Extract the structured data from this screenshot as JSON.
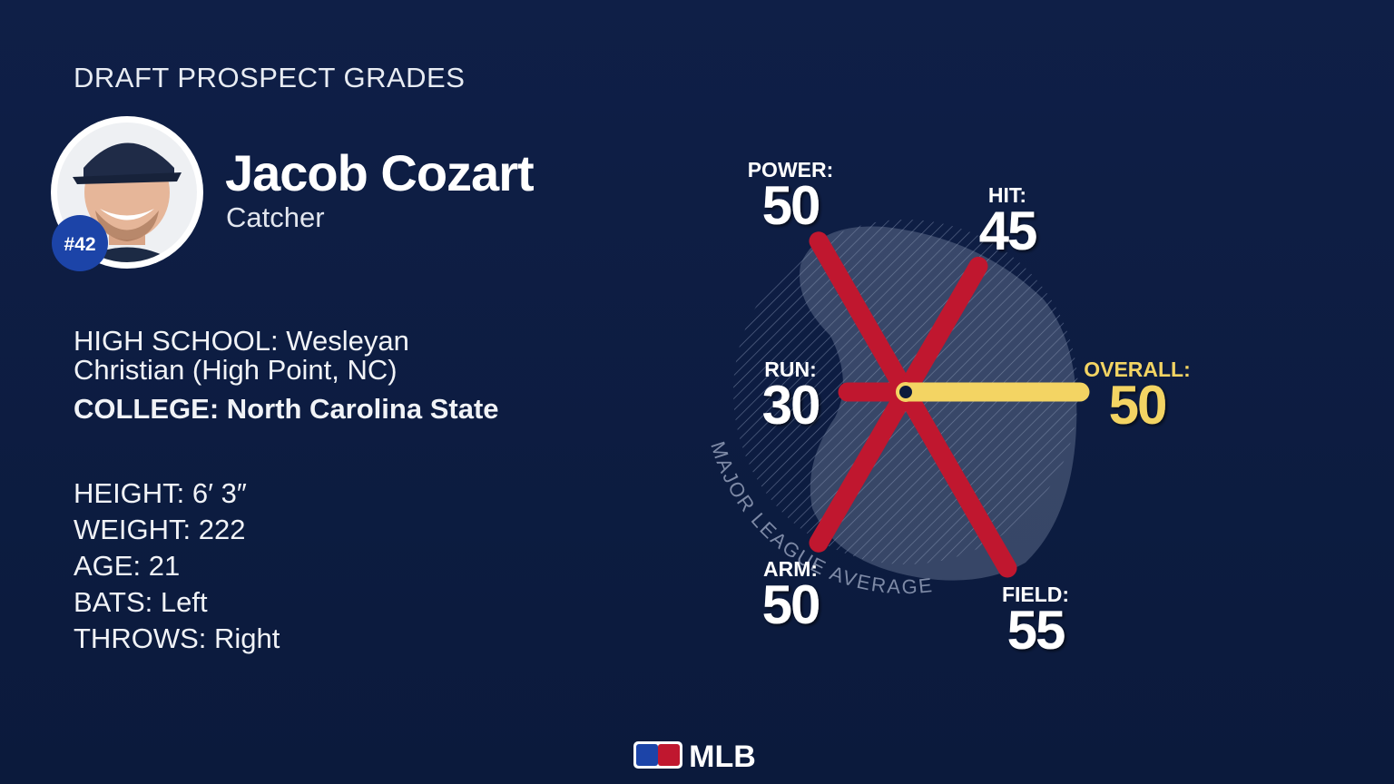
{
  "header": {
    "title": "DRAFT PROSPECT GRADES"
  },
  "player": {
    "name": "Jacob Cozart",
    "position": "Catcher",
    "number": "#42"
  },
  "schools": [
    {
      "label": "HIGH SCHOOL:",
      "value": "Wesleyan Christian (High Point, NC)"
    },
    {
      "label": "COLLEGE:",
      "value": "North Carolina State"
    }
  ],
  "stats": [
    {
      "label": "HEIGHT:",
      "value": "6′ 3″"
    },
    {
      "label": "WEIGHT:",
      "value": 222
    },
    {
      "label": "AGE:",
      "value": 21
    },
    {
      "label": "BATS:",
      "value": "Left"
    },
    {
      "label": "THROWS:",
      "value": "Right"
    }
  ],
  "chart_data": {
    "type": "radial",
    "categories": [
      "POWER:",
      "HIT:",
      "RUN:",
      "OVERALL:",
      "ARM:",
      "FIELD:"
    ],
    "values": [
      50,
      45,
      30,
      50,
      50,
      55
    ],
    "colors": [
      "#c0172f",
      "#c0172f",
      "#c0172f",
      "#f3d463",
      "#c0172f",
      "#c0172f"
    ],
    "rlim": [
      20,
      80
    ],
    "annotation": "MAJOR LEAGUE AVERAGE"
  },
  "footer": {
    "logo": "MLB"
  }
}
